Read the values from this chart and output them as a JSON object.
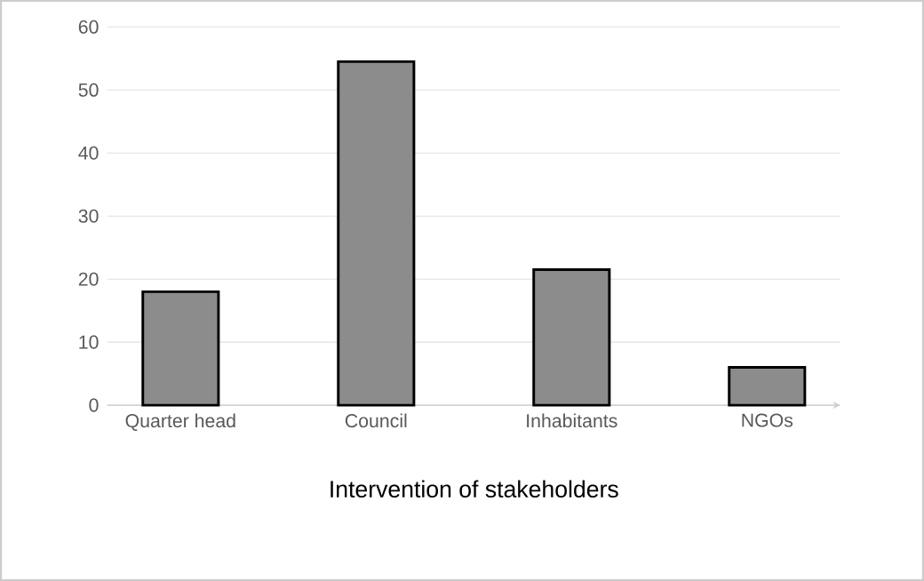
{
  "chart_data": {
    "type": "bar",
    "xlabel": "Intervention of stakeholders",
    "categories": [
      "Quarter head",
      "Council",
      "Inhabitants",
      "NGOs"
    ],
    "values": [
      18,
      54.5,
      21.5,
      6
    ],
    "color": "#8c8c8c",
    "ylim": [
      0,
      60
    ],
    "yticks": [
      0,
      10,
      20,
      30,
      40,
      50,
      60
    ],
    "grid": "y"
  }
}
